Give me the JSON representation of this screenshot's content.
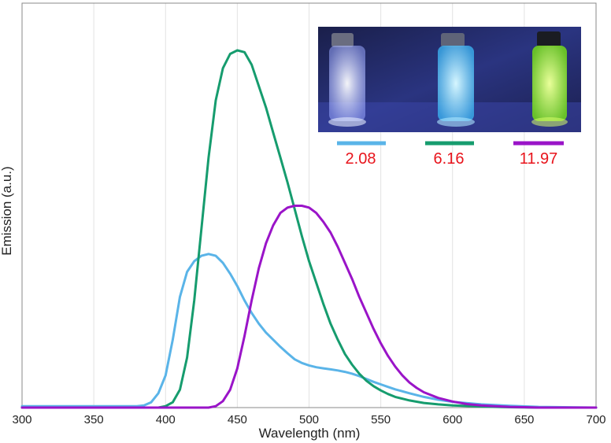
{
  "chart_data": {
    "type": "line",
    "title": "",
    "xlabel": "Wavelength (nm)",
    "ylabel": "Emission (a.u.)",
    "xlim": [
      300,
      700
    ],
    "ylim": [
      0,
      1
    ],
    "xticks": [
      300,
      350,
      400,
      450,
      500,
      550,
      600,
      650,
      700
    ],
    "grid": "vertical",
    "legend_placement": "top-right",
    "series": [
      {
        "name": "2.08",
        "color": "#5ab4e8",
        "x": [
          300,
          380,
          385,
          390,
          395,
          400,
          405,
          410,
          415,
          420,
          425,
          430,
          435,
          440,
          445,
          450,
          455,
          460,
          465,
          470,
          475,
          480,
          485,
          490,
          495,
          500,
          505,
          510,
          515,
          520,
          525,
          530,
          535,
          540,
          545,
          550,
          555,
          560,
          570,
          580,
          590,
          600,
          620,
          640,
          660,
          700
        ],
        "y": [
          0.004,
          0.004,
          0.006,
          0.015,
          0.04,
          0.09,
          0.19,
          0.31,
          0.38,
          0.41,
          0.425,
          0.43,
          0.425,
          0.405,
          0.375,
          0.34,
          0.3,
          0.265,
          0.235,
          0.21,
          0.19,
          0.17,
          0.152,
          0.135,
          0.125,
          0.118,
          0.113,
          0.11,
          0.107,
          0.104,
          0.1,
          0.095,
          0.088,
          0.08,
          0.072,
          0.065,
          0.058,
          0.051,
          0.04,
          0.03,
          0.022,
          0.016,
          0.009,
          0.005,
          0.002,
          0.0
        ]
      },
      {
        "name": "6.16",
        "color": "#169c6e",
        "x": [
          300,
          395,
          400,
          405,
          410,
          415,
          420,
          425,
          430,
          435,
          440,
          445,
          450,
          455,
          460,
          465,
          470,
          475,
          480,
          485,
          490,
          495,
          500,
          505,
          510,
          515,
          520,
          525,
          530,
          535,
          540,
          545,
          550,
          555,
          560,
          570,
          580,
          590,
          600,
          620,
          640,
          660,
          700
        ],
        "y": [
          0.0,
          0.0,
          0.004,
          0.015,
          0.05,
          0.14,
          0.3,
          0.5,
          0.7,
          0.86,
          0.95,
          0.99,
          1.0,
          0.995,
          0.96,
          0.9,
          0.84,
          0.77,
          0.7,
          0.63,
          0.555,
          0.48,
          0.41,
          0.35,
          0.29,
          0.235,
          0.19,
          0.15,
          0.12,
          0.095,
          0.075,
          0.06,
          0.048,
          0.038,
          0.03,
          0.02,
          0.013,
          0.009,
          0.006,
          0.003,
          0.001,
          0.0,
          0.0
        ]
      },
      {
        "name": "11.97",
        "color": "#9a14c8",
        "x": [
          300,
          430,
          435,
          440,
          445,
          450,
          455,
          460,
          465,
          470,
          475,
          480,
          485,
          490,
          495,
          500,
          505,
          510,
          515,
          520,
          525,
          530,
          535,
          540,
          545,
          550,
          555,
          560,
          565,
          570,
          575,
          580,
          590,
          600,
          610,
          620,
          630,
          640,
          650,
          660,
          680,
          700
        ],
        "y": [
          0.0,
          0.0,
          0.004,
          0.018,
          0.05,
          0.11,
          0.2,
          0.3,
          0.39,
          0.46,
          0.51,
          0.545,
          0.56,
          0.565,
          0.565,
          0.56,
          0.545,
          0.52,
          0.49,
          0.45,
          0.405,
          0.36,
          0.31,
          0.265,
          0.22,
          0.18,
          0.145,
          0.115,
          0.09,
          0.07,
          0.055,
          0.043,
          0.027,
          0.017,
          0.01,
          0.006,
          0.004,
          0.002,
          0.001,
          0.0,
          0.0,
          0.0
        ]
      }
    ]
  },
  "inset": {
    "image": "photo of three sample vials glowing under UV light",
    "vial_colors": [
      "#dfe9ff",
      "#7fd8ff",
      "#b4ff3c"
    ]
  }
}
